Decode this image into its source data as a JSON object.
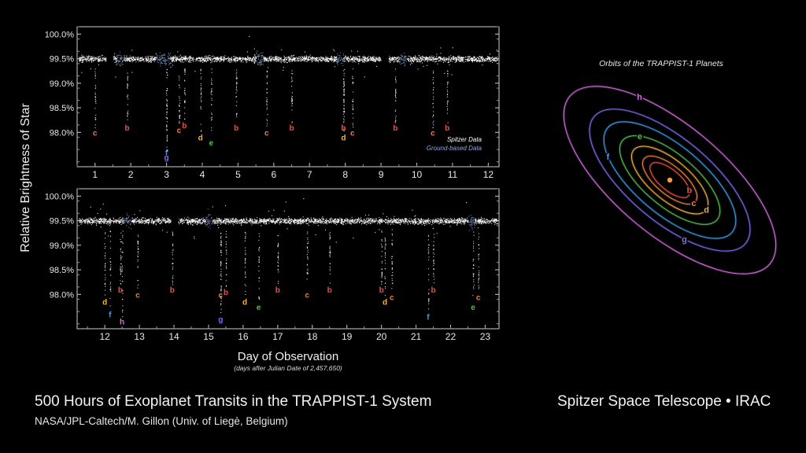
{
  "title": "500 Hours of Exoplanet Transits in the TRAPPIST-1 System",
  "credit": "NASA/JPL-Caltech/M. Gillon (Univ. of Liegè, Belgium)",
  "mission": "Spitzer Space Telescope • IRAC",
  "colors": {
    "b": "#e8504a",
    "c": "#f07f3c",
    "d": "#f0b43c",
    "e": "#57c04e",
    "f": "#3ca0e8",
    "g": "#7d6cf0",
    "h": "#d46ee0",
    "spitzer": "#ffffff",
    "ground": "#8fa8d8"
  },
  "chart_data": [
    {
      "type": "scatter",
      "panel": "top",
      "ylabel": "Relative Brightness of Star",
      "xlim": [
        0.5,
        12.3
      ],
      "ylim": [
        97.3,
        100.15
      ],
      "yticks": [
        "100.0%",
        "99.5%",
        "99.0%",
        "98.5%",
        "98.0%"
      ],
      "ytick_values": [
        100.0,
        99.5,
        99.0,
        98.5,
        98.0
      ],
      "xticks": [
        1,
        2,
        3,
        4,
        5,
        6,
        7,
        8,
        9,
        10,
        11,
        12
      ],
      "baseline": 99.5,
      "legend": {
        "spitzer": "Spitzer Data",
        "ground": "Ground-based Data",
        "position": "bottom-right"
      },
      "ground_segments": [
        [
          1.6,
          1.8
        ],
        [
          2.7,
          3.1
        ],
        [
          5.5,
          5.7
        ],
        [
          7.75,
          7.95
        ],
        [
          9.5,
          9.7
        ]
      ],
      "gaps": [
        [
          1.3,
          1.5
        ],
        [
          9.0,
          9.2
        ]
      ],
      "transits": [
        {
          "planet": "c",
          "x": 1.0,
          "depth": 98.0
        },
        {
          "planet": "b",
          "x": 1.9,
          "depth": 98.1
        },
        {
          "planet": "f",
          "x": 3.0,
          "depth": 97.6
        },
        {
          "planet": "g",
          "x": 3.0,
          "depth": 97.5
        },
        {
          "planet": "c",
          "x": 3.35,
          "depth": 98.05
        },
        {
          "planet": "b",
          "x": 3.5,
          "depth": 98.15
        },
        {
          "planet": "d",
          "x": 3.95,
          "depth": 97.9
        },
        {
          "planet": "e",
          "x": 4.25,
          "depth": 97.8
        },
        {
          "planet": "b",
          "x": 4.95,
          "depth": 98.1
        },
        {
          "planet": "c",
          "x": 5.8,
          "depth": 98.0
        },
        {
          "planet": "b",
          "x": 6.5,
          "depth": 98.1
        },
        {
          "planet": "b",
          "x": 7.95,
          "depth": 98.1
        },
        {
          "planet": "d",
          "x": 7.95,
          "depth": 97.9
        },
        {
          "planet": "c",
          "x": 8.2,
          "depth": 98.0
        },
        {
          "planet": "b",
          "x": 9.4,
          "depth": 98.1
        },
        {
          "planet": "c",
          "x": 10.45,
          "depth": 98.0
        },
        {
          "planet": "b",
          "x": 10.85,
          "depth": 98.1
        }
      ]
    },
    {
      "type": "scatter",
      "panel": "bottom",
      "ylabel": "Relative Brightness of Star",
      "xlabel": "Day of Observation",
      "xsub": "(days after Julian Date of 2,457,650)",
      "xlim": [
        11.2,
        23.4
      ],
      "ylim": [
        97.3,
        100.15
      ],
      "yticks": [
        "100.0%",
        "99.5%",
        "99.0%",
        "98.5%",
        "98.0%"
      ],
      "ytick_values": [
        100.0,
        99.5,
        99.0,
        98.5,
        98.0
      ],
      "xticks": [
        12,
        13,
        14,
        15,
        16,
        17,
        18,
        19,
        20,
        21,
        22,
        23
      ],
      "baseline": 99.5,
      "ground_segments": [
        [
          12.55,
          12.75
        ],
        [
          14.9,
          15.1
        ],
        [
          22.5,
          22.7
        ]
      ],
      "gaps": [
        [
          13.9,
          14.1
        ]
      ],
      "transits": [
        {
          "planet": "b",
          "x": 12.45,
          "depth": 98.1
        },
        {
          "planet": "d",
          "x": 12.0,
          "depth": 97.85
        },
        {
          "planet": "f",
          "x": 12.15,
          "depth": 97.6
        },
        {
          "planet": "h",
          "x": 12.5,
          "depth": 97.45
        },
        {
          "planet": "c",
          "x": 12.95,
          "depth": 98.0
        },
        {
          "planet": "b",
          "x": 13.95,
          "depth": 98.1
        },
        {
          "planet": "c",
          "x": 15.35,
          "depth": 98.0
        },
        {
          "planet": "b",
          "x": 15.5,
          "depth": 98.05
        },
        {
          "planet": "g",
          "x": 15.35,
          "depth": 97.5
        },
        {
          "planet": "d",
          "x": 16.05,
          "depth": 97.85
        },
        {
          "planet": "e",
          "x": 16.45,
          "depth": 97.75
        },
        {
          "planet": "b",
          "x": 17.0,
          "depth": 98.1
        },
        {
          "planet": "c",
          "x": 17.85,
          "depth": 98.0
        },
        {
          "planet": "b",
          "x": 18.5,
          "depth": 98.1
        },
        {
          "planet": "b",
          "x": 20.0,
          "depth": 98.1
        },
        {
          "planet": "d",
          "x": 20.1,
          "depth": 97.85
        },
        {
          "planet": "c",
          "x": 20.3,
          "depth": 97.95
        },
        {
          "planet": "f",
          "x": 21.35,
          "depth": 97.55
        },
        {
          "planet": "b",
          "x": 21.5,
          "depth": 98.1
        },
        {
          "planet": "e",
          "x": 22.65,
          "depth": 97.75
        },
        {
          "planet": "c",
          "x": 22.8,
          "depth": 97.95
        }
      ]
    },
    {
      "type": "diagram",
      "panel": "orbits",
      "title": "Orbits of the TRAPPIST-1 Planets",
      "planets": [
        {
          "name": "b",
          "rel_radius": 1.0
        },
        {
          "name": "c",
          "rel_radius": 1.37
        },
        {
          "name": "d",
          "rel_radius": 1.93
        },
        {
          "name": "e",
          "rel_radius": 2.53
        },
        {
          "name": "f",
          "rel_radius": 3.33
        },
        {
          "name": "g",
          "rel_radius": 4.05
        },
        {
          "name": "h",
          "rel_radius": 5.35
        }
      ]
    }
  ]
}
